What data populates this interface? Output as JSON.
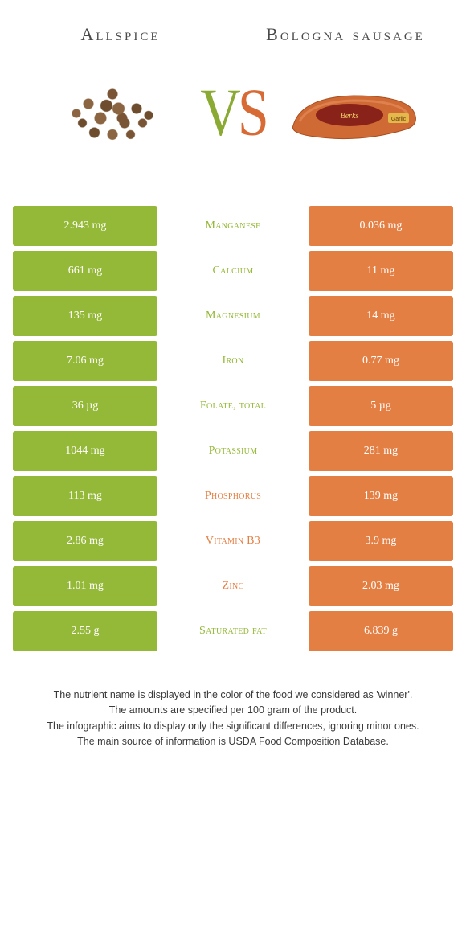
{
  "header": {
    "left_title": "Allspice",
    "right_title": "Bologna sausage",
    "vs_v": "V",
    "vs_s": "S"
  },
  "colors": {
    "left": "#94b837",
    "right": "#e47f44",
    "text": "#3a3a3a"
  },
  "rows": [
    {
      "left": "2.943 mg",
      "label": "Manganese",
      "right": "0.036 mg",
      "winner": "left"
    },
    {
      "left": "661 mg",
      "label": "Calcium",
      "right": "11 mg",
      "winner": "left"
    },
    {
      "left": "135 mg",
      "label": "Magnesium",
      "right": "14 mg",
      "winner": "left"
    },
    {
      "left": "7.06 mg",
      "label": "Iron",
      "right": "0.77 mg",
      "winner": "left"
    },
    {
      "left": "36 µg",
      "label": "Folate, total",
      "right": "5 µg",
      "winner": "left"
    },
    {
      "left": "1044 mg",
      "label": "Potassium",
      "right": "281 mg",
      "winner": "left"
    },
    {
      "left": "113 mg",
      "label": "Phosphorus",
      "right": "139 mg",
      "winner": "right"
    },
    {
      "left": "2.86 mg",
      "label": "Vitamin B3",
      "right": "3.9 mg",
      "winner": "right"
    },
    {
      "left": "1.01 mg",
      "label": "Zinc",
      "right": "2.03 mg",
      "winner": "right"
    },
    {
      "left": "2.55 g",
      "label": "Saturated fat",
      "right": "6.839 g",
      "winner": "left"
    }
  ],
  "footer": {
    "line1": "The nutrient name is displayed in the color of the food we considered as 'winner'.",
    "line2": "The amounts are specified per 100 gram of the product.",
    "line3": "The infographic aims to display only the significant differences, ignoring minor ones.",
    "line4": "The main source of information is USDA Food Composition Database."
  }
}
